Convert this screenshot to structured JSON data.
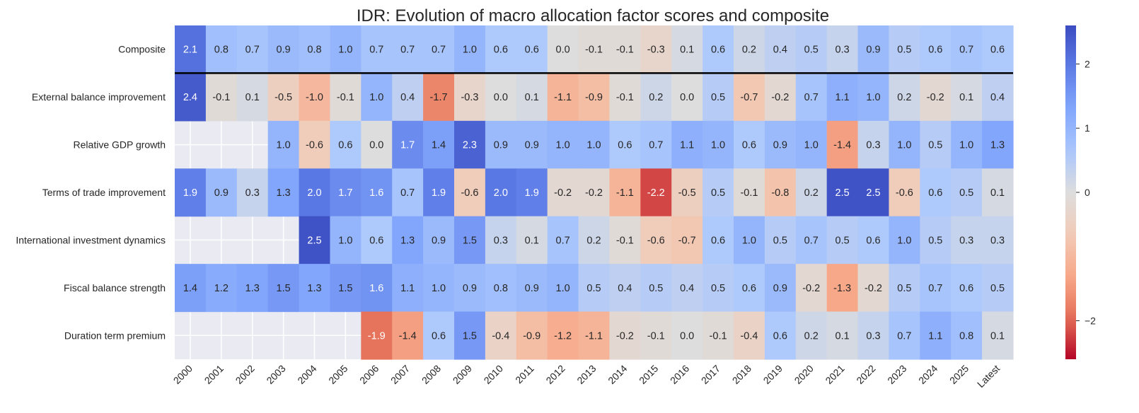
{
  "chart_data": {
    "type": "heatmap",
    "title": "IDR: Evolution of macro allocation factor scores and composite",
    "columns": [
      "2000",
      "2001",
      "2002",
      "2003",
      "2004",
      "2005",
      "2006",
      "2007",
      "2008",
      "2009",
      "2010",
      "2011",
      "2012",
      "2013",
      "2014",
      "2015",
      "2016",
      "2017",
      "2018",
      "2019",
      "2020",
      "2021",
      "2022",
      "2023",
      "2024",
      "2025",
      "Latest"
    ],
    "rows": [
      {
        "label": "Composite",
        "values": [
          2.1,
          0.8,
          0.7,
          0.9,
          0.8,
          1.0,
          0.7,
          0.7,
          0.7,
          1.0,
          0.6,
          0.6,
          0.0,
          -0.1,
          -0.1,
          -0.3,
          0.1,
          0.6,
          0.2,
          0.4,
          0.5,
          0.3,
          0.9,
          0.5,
          0.6,
          0.7,
          0.6
        ]
      },
      {
        "label": "External balance improvement",
        "values": [
          2.4,
          -0.1,
          0.1,
          -0.5,
          -1.0,
          -0.1,
          1.0,
          0.4,
          -1.7,
          -0.3,
          -0.0,
          0.1,
          -1.1,
          -0.9,
          -0.1,
          0.2,
          0.0,
          0.5,
          -0.7,
          -0.2,
          0.7,
          1.1,
          1.0,
          0.2,
          -0.2,
          0.1,
          0.4
        ]
      },
      {
        "label": "Relative GDP growth",
        "values": [
          null,
          null,
          null,
          1.0,
          -0.6,
          0.6,
          -0.0,
          1.7,
          1.4,
          2.3,
          0.9,
          0.9,
          1.0,
          1.0,
          0.6,
          0.7,
          1.1,
          1.0,
          0.6,
          0.9,
          1.0,
          -1.4,
          0.3,
          1.0,
          0.5,
          1.0,
          1.3
        ]
      },
      {
        "label": "Terms of trade improvement",
        "values": [
          1.9,
          0.9,
          0.3,
          1.3,
          2.0,
          1.7,
          1.6,
          0.7,
          1.9,
          -0.6,
          2.0,
          1.9,
          -0.2,
          -0.2,
          -1.1,
          -2.2,
          -0.5,
          0.5,
          -0.1,
          -0.8,
          0.2,
          2.5,
          2.5,
          -0.6,
          0.6,
          0.5,
          0.1
        ]
      },
      {
        "label": "International investment dynamics",
        "values": [
          null,
          null,
          null,
          null,
          2.5,
          1.0,
          0.6,
          1.3,
          0.9,
          1.5,
          0.3,
          0.1,
          0.7,
          0.2,
          -0.1,
          -0.6,
          -0.7,
          0.6,
          1.0,
          0.5,
          0.7,
          0.5,
          0.6,
          1.0,
          0.5,
          0.3,
          0.3
        ]
      },
      {
        "label": "Fiscal balance strength",
        "values": [
          1.4,
          1.2,
          1.3,
          1.5,
          1.3,
          1.5,
          1.6,
          1.1,
          1.0,
          0.9,
          0.8,
          0.9,
          1.0,
          0.5,
          0.4,
          0.5,
          0.4,
          0.5,
          0.6,
          0.9,
          -0.2,
          -1.3,
          -0.2,
          0.5,
          0.7,
          0.6,
          0.5
        ]
      },
      {
        "label": "Duration term premium",
        "values": [
          null,
          null,
          null,
          null,
          null,
          null,
          -1.9,
          -1.4,
          0.6,
          1.5,
          -0.4,
          -0.9,
          -1.2,
          -1.1,
          -0.2,
          -0.1,
          -0.0,
          -0.1,
          -0.4,
          0.6,
          0.2,
          0.1,
          0.3,
          0.7,
          1.1,
          0.8,
          0.1
        ]
      }
    ],
    "colormap": "coolwarm_r",
    "vlim": [
      -2.6,
      2.6
    ],
    "colorbar_ticks": [
      "2",
      "1",
      "0",
      "−2"
    ],
    "colorbar_tick_values": [
      2,
      1,
      0,
      -2
    ],
    "separator_after_row": "Composite",
    "missing_color": "#EAEAF2"
  }
}
